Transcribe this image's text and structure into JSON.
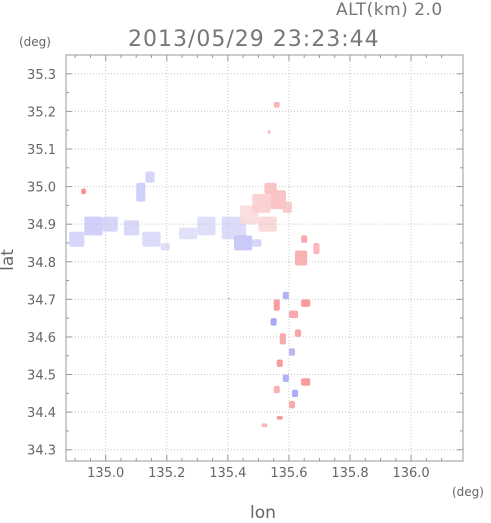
{
  "header": {
    "altitude_label": "ALT(km) 2.0",
    "timestamp": "2013/05/29 23:23:44"
  },
  "axes": {
    "y_unit": "(deg)",
    "x_unit": "(deg)",
    "x_label": "lon",
    "y_label": "lat"
  },
  "chart_data": {
    "type": "heatmap",
    "xlabel": "lon",
    "ylabel": "lat",
    "xlim": [
      134.87,
      136.17
    ],
    "ylim": [
      34.27,
      35.35
    ],
    "x_ticks": [
      135.0,
      135.2,
      135.4,
      135.6,
      135.8,
      136.0
    ],
    "x_tick_labels": [
      "135.0",
      "135.2",
      "135.4",
      "135.6",
      "135.8",
      "136.0"
    ],
    "y_ticks": [
      34.3,
      34.4,
      34.5,
      34.6,
      34.7,
      34.8,
      34.9,
      35.0,
      35.1,
      35.2,
      35.3
    ],
    "y_tick_labels": [
      "34.3",
      "34.4",
      "34.5",
      "34.6",
      "34.7",
      "34.8",
      "34.9",
      "35.0",
      "35.1",
      "35.2",
      "35.3"
    ],
    "grid": true,
    "colors": {
      "positive": "#e8585a",
      "negative": "#6b6be8",
      "grid": "#c8c8c8",
      "frame": "#999999"
    },
    "echo_patches": [
      {
        "lon": 134.92,
        "lat": 34.98,
        "w": 0.015,
        "h": 0.015,
        "v": 0.7
      },
      {
        "lon": 134.88,
        "lat": 34.84,
        "w": 0.05,
        "h": 0.04,
        "v": -0.2
      },
      {
        "lon": 134.93,
        "lat": 34.87,
        "w": 0.06,
        "h": 0.05,
        "v": -0.25
      },
      {
        "lon": 134.99,
        "lat": 34.88,
        "w": 0.05,
        "h": 0.04,
        "v": -0.2
      },
      {
        "lon": 135.06,
        "lat": 34.87,
        "w": 0.05,
        "h": 0.04,
        "v": -0.18
      },
      {
        "lon": 135.1,
        "lat": 34.96,
        "w": 0.03,
        "h": 0.05,
        "v": -0.25
      },
      {
        "lon": 135.13,
        "lat": 35.01,
        "w": 0.03,
        "h": 0.03,
        "v": -0.2
      },
      {
        "lon": 135.12,
        "lat": 34.84,
        "w": 0.06,
        "h": 0.04,
        "v": -0.15
      },
      {
        "lon": 135.18,
        "lat": 34.83,
        "w": 0.03,
        "h": 0.02,
        "v": -0.12
      },
      {
        "lon": 135.24,
        "lat": 34.86,
        "w": 0.06,
        "h": 0.03,
        "v": -0.1
      },
      {
        "lon": 135.3,
        "lat": 34.87,
        "w": 0.06,
        "h": 0.05,
        "v": -0.12
      },
      {
        "lon": 135.38,
        "lat": 34.86,
        "w": 0.08,
        "h": 0.06,
        "v": -0.15
      },
      {
        "lon": 135.42,
        "lat": 34.83,
        "w": 0.06,
        "h": 0.04,
        "v": -0.3
      },
      {
        "lon": 135.44,
        "lat": 34.9,
        "w": 0.06,
        "h": 0.05,
        "v": 0.1
      },
      {
        "lon": 135.48,
        "lat": 34.93,
        "w": 0.06,
        "h": 0.05,
        "v": 0.2
      },
      {
        "lon": 135.5,
        "lat": 34.88,
        "w": 0.06,
        "h": 0.04,
        "v": 0.15
      },
      {
        "lon": 135.54,
        "lat": 34.94,
        "w": 0.05,
        "h": 0.05,
        "v": 0.3
      },
      {
        "lon": 135.58,
        "lat": 34.93,
        "w": 0.03,
        "h": 0.03,
        "v": 0.25
      },
      {
        "lon": 135.52,
        "lat": 34.98,
        "w": 0.04,
        "h": 0.03,
        "v": 0.3
      },
      {
        "lon": 135.55,
        "lat": 35.21,
        "w": 0.02,
        "h": 0.015,
        "v": 0.4
      },
      {
        "lon": 135.53,
        "lat": 35.14,
        "w": 0.01,
        "h": 0.01,
        "v": 0.3
      },
      {
        "lon": 135.48,
        "lat": 34.84,
        "w": 0.03,
        "h": 0.02,
        "v": -0.2
      },
      {
        "lon": 135.64,
        "lat": 34.85,
        "w": 0.02,
        "h": 0.02,
        "v": 0.5
      },
      {
        "lon": 135.62,
        "lat": 34.79,
        "w": 0.04,
        "h": 0.04,
        "v": 0.45
      },
      {
        "lon": 135.68,
        "lat": 34.82,
        "w": 0.02,
        "h": 0.03,
        "v": 0.4
      },
      {
        "lon": 135.64,
        "lat": 34.68,
        "w": 0.03,
        "h": 0.02,
        "v": 0.6
      },
      {
        "lon": 135.58,
        "lat": 34.7,
        "w": 0.02,
        "h": 0.02,
        "v": -0.5
      },
      {
        "lon": 135.55,
        "lat": 34.67,
        "w": 0.02,
        "h": 0.03,
        "v": 0.6
      },
      {
        "lon": 135.54,
        "lat": 34.63,
        "w": 0.02,
        "h": 0.02,
        "v": -0.6
      },
      {
        "lon": 135.6,
        "lat": 34.65,
        "w": 0.03,
        "h": 0.02,
        "v": 0.5
      },
      {
        "lon": 135.62,
        "lat": 34.6,
        "w": 0.02,
        "h": 0.02,
        "v": 0.55
      },
      {
        "lon": 135.57,
        "lat": 34.58,
        "w": 0.02,
        "h": 0.03,
        "v": 0.5
      },
      {
        "lon": 135.6,
        "lat": 34.55,
        "w": 0.02,
        "h": 0.02,
        "v": -0.45
      },
      {
        "lon": 135.56,
        "lat": 34.52,
        "w": 0.02,
        "h": 0.02,
        "v": 0.6
      },
      {
        "lon": 135.58,
        "lat": 34.48,
        "w": 0.02,
        "h": 0.02,
        "v": -0.5
      },
      {
        "lon": 135.64,
        "lat": 34.47,
        "w": 0.03,
        "h": 0.02,
        "v": 0.6
      },
      {
        "lon": 135.61,
        "lat": 34.44,
        "w": 0.02,
        "h": 0.02,
        "v": -0.55
      },
      {
        "lon": 135.55,
        "lat": 34.45,
        "w": 0.02,
        "h": 0.02,
        "v": 0.45
      },
      {
        "lon": 135.6,
        "lat": 34.41,
        "w": 0.02,
        "h": 0.02,
        "v": 0.5
      },
      {
        "lon": 135.56,
        "lat": 34.38,
        "w": 0.02,
        "h": 0.01,
        "v": 0.6
      },
      {
        "lon": 135.51,
        "lat": 34.36,
        "w": 0.02,
        "h": 0.01,
        "v": 0.4
      },
      {
        "lon": 135.4,
        "lat": 34.7,
        "w": 0.005,
        "h": 0.005,
        "v": 0.6
      }
    ]
  }
}
